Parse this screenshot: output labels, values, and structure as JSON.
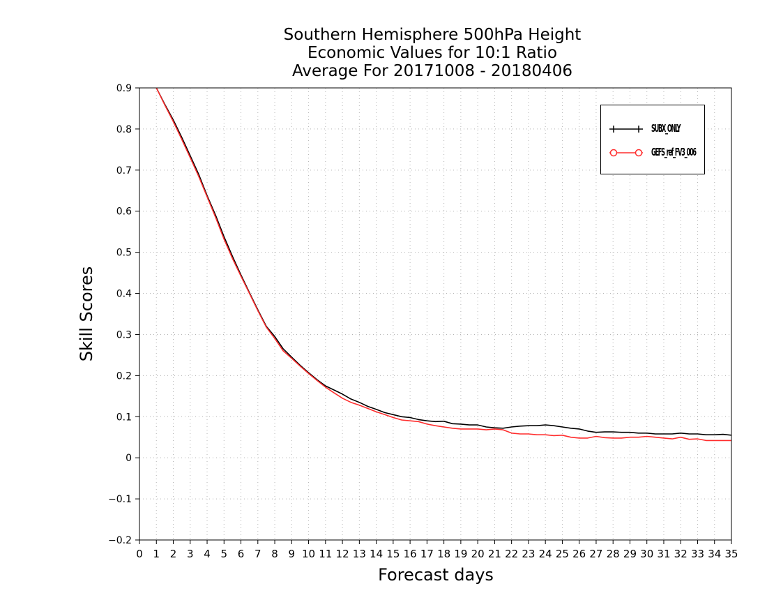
{
  "chart_data": {
    "type": "line",
    "title_lines": [
      "Southern Hemisphere 500hPa Height",
      "Economic Values for 10:1 Ratio",
      "Average For 20171008 - 20180406"
    ],
    "xlabel": "Forecast days",
    "ylabel": "Skill Scores",
    "xlim": [
      0,
      35
    ],
    "ylim": [
      -0.2,
      0.9
    ],
    "xticks": [
      0,
      1,
      2,
      3,
      4,
      5,
      6,
      7,
      8,
      9,
      10,
      11,
      12,
      13,
      14,
      15,
      16,
      17,
      18,
      19,
      20,
      21,
      22,
      23,
      24,
      25,
      26,
      27,
      28,
      29,
      30,
      31,
      32,
      33,
      34,
      35
    ],
    "yticks": [
      -0.2,
      -0.1,
      0,
      0.1,
      0.2,
      0.3,
      0.4,
      0.5,
      0.6,
      0.7,
      0.8,
      0.9
    ],
    "ytick_labels": [
      "−0.2",
      "−0.1",
      "0",
      "0.1",
      "0.2",
      "0.3",
      "0.4",
      "0.5",
      "0.6",
      "0.7",
      "0.8",
      "0.9"
    ],
    "grid": true,
    "legend_position": "top-right",
    "series": [
      {
        "name": "SUBX_ONLY",
        "color": "#000000",
        "marker": "plus",
        "x": [
          1,
          1.5,
          2,
          2.5,
          3,
          3.5,
          4,
          4.5,
          5,
          5.5,
          6,
          6.5,
          7,
          7.5,
          8,
          8.5,
          9,
          9.5,
          10,
          10.5,
          11,
          11.5,
          12,
          12.5,
          13,
          13.5,
          14,
          14.5,
          15,
          15.5,
          16,
          16.5,
          17,
          17.5,
          18,
          18.5,
          19,
          19.5,
          20,
          20.5,
          21,
          21.5,
          22,
          22.5,
          23,
          23.5,
          24,
          24.5,
          25,
          25.5,
          26,
          26.5,
          27,
          27.5,
          28,
          28.5,
          29,
          29.5,
          30,
          30.5,
          31,
          31.5,
          32,
          32.5,
          33,
          33.5,
          34,
          34.5,
          35
        ],
        "y": [
          0.9,
          0.86,
          0.822,
          0.78,
          0.735,
          0.69,
          0.638,
          0.59,
          0.538,
          0.49,
          0.445,
          0.402,
          0.36,
          0.32,
          0.295,
          0.265,
          0.245,
          0.225,
          0.207,
          0.19,
          0.175,
          0.165,
          0.155,
          0.143,
          0.135,
          0.125,
          0.118,
          0.11,
          0.105,
          0.1,
          0.098,
          0.093,
          0.09,
          0.088,
          0.089,
          0.083,
          0.082,
          0.08,
          0.08,
          0.075,
          0.073,
          0.072,
          0.075,
          0.077,
          0.078,
          0.078,
          0.08,
          0.078,
          0.075,
          0.072,
          0.07,
          0.065,
          0.062,
          0.063,
          0.063,
          0.062,
          0.062,
          0.06,
          0.06,
          0.058,
          0.058,
          0.058,
          0.06,
          0.058,
          0.058,
          0.056,
          0.056,
          0.057,
          0.055
        ]
      },
      {
        "name": "GEFS_ref_FV3_006",
        "color": "#ff2d2d",
        "marker": "circle",
        "x": [
          1,
          1.5,
          2,
          2.5,
          3,
          3.5,
          4,
          4.5,
          5,
          5.5,
          6,
          6.5,
          7,
          7.5,
          8,
          8.5,
          9,
          9.5,
          10,
          10.5,
          11,
          11.5,
          12,
          12.5,
          13,
          13.5,
          14,
          14.5,
          15,
          15.5,
          16,
          16.5,
          17,
          17.5,
          18,
          18.5,
          19,
          19.5,
          20,
          20.5,
          21,
          21.5,
          22,
          22.5,
          23,
          23.5,
          24,
          24.5,
          25,
          25.5,
          26,
          26.5,
          27,
          27.5,
          28,
          28.5,
          29,
          29.5,
          30,
          30.5,
          31,
          31.5,
          32,
          32.5,
          33,
          33.5,
          34,
          34.5,
          35
        ],
        "y": [
          0.9,
          0.858,
          0.818,
          0.775,
          0.73,
          0.685,
          0.635,
          0.585,
          0.532,
          0.485,
          0.442,
          0.4,
          0.358,
          0.318,
          0.29,
          0.26,
          0.242,
          0.223,
          0.205,
          0.188,
          0.172,
          0.158,
          0.145,
          0.135,
          0.128,
          0.12,
          0.112,
          0.105,
          0.098,
          0.092,
          0.09,
          0.088,
          0.082,
          0.078,
          0.075,
          0.072,
          0.07,
          0.07,
          0.07,
          0.068,
          0.07,
          0.068,
          0.06,
          0.058,
          0.058,
          0.056,
          0.056,
          0.054,
          0.055,
          0.05,
          0.048,
          0.048,
          0.052,
          0.049,
          0.048,
          0.048,
          0.05,
          0.05,
          0.052,
          0.05,
          0.048,
          0.046,
          0.05,
          0.045,
          0.046,
          0.042,
          0.042,
          0.042,
          0.042
        ]
      }
    ]
  },
  "legend": {
    "items": [
      {
        "label": "SUBX_ONLY",
        "color": "#000000",
        "marker": "plus"
      },
      {
        "label": "GEFS_ref_FV3_006",
        "color": "#ff2d2d",
        "marker": "circle"
      }
    ]
  }
}
